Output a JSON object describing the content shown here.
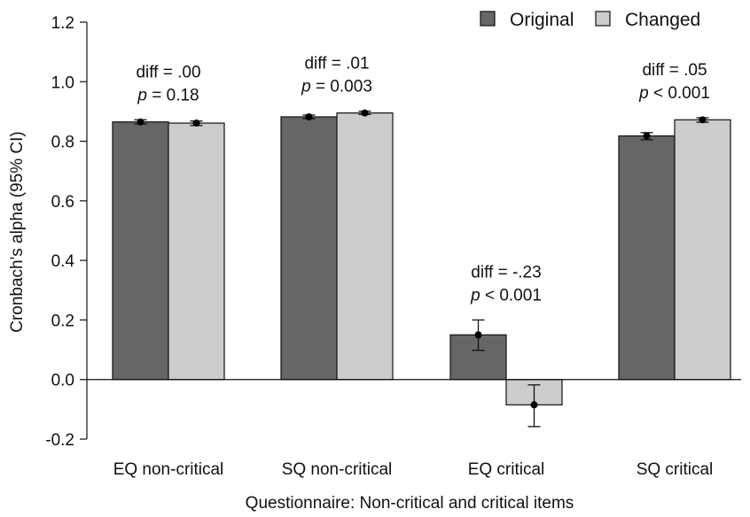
{
  "chart_data": {
    "type": "bar",
    "categories": [
      "EQ non-critical",
      "SQ non-critical",
      "EQ critical",
      "SQ critical"
    ],
    "series": [
      {
        "name": "Original",
        "color": "#666666",
        "values": [
          0.865,
          0.882,
          0.15,
          0.818
        ],
        "ci_low": [
          0.858,
          0.876,
          0.098,
          0.805
        ],
        "ci_high": [
          0.872,
          0.888,
          0.2,
          0.829
        ]
      },
      {
        "name": "Changed",
        "color": "#cccccc",
        "values": [
          0.861,
          0.895,
          -0.085,
          0.872
        ],
        "ci_low": [
          0.853,
          0.89,
          -0.158,
          0.864
        ],
        "ci_high": [
          0.868,
          0.901,
          -0.018,
          0.879
        ]
      }
    ],
    "annotations": [
      {
        "diff": "diff = .00",
        "p_label": "p",
        "p_value": "= 0.18"
      },
      {
        "diff": "diff = .01",
        "p_label": "p",
        "p_value": "= 0.003"
      },
      {
        "diff": "diff = -.23",
        "p_label": "p",
        "p_value": "< 0.001"
      },
      {
        "diff": "diff = .05",
        "p_label": "p",
        "p_value": "< 0.001"
      }
    ],
    "xlabel": "Questionnaire: Non-critical and critical items",
    "ylabel": "Cronbach's alpha (95% CI)",
    "ylim": [
      -0.2,
      1.2
    ],
    "yticks": [
      -0.2,
      0.0,
      0.2,
      0.4,
      0.6,
      0.8,
      1.0,
      1.2
    ],
    "ytick_labels": [
      "-0.2",
      "0.0",
      "0.2",
      "0.4",
      "0.6",
      "0.8",
      "1.0",
      "1.2"
    ],
    "grid": false,
    "legend_position": "top-right"
  }
}
